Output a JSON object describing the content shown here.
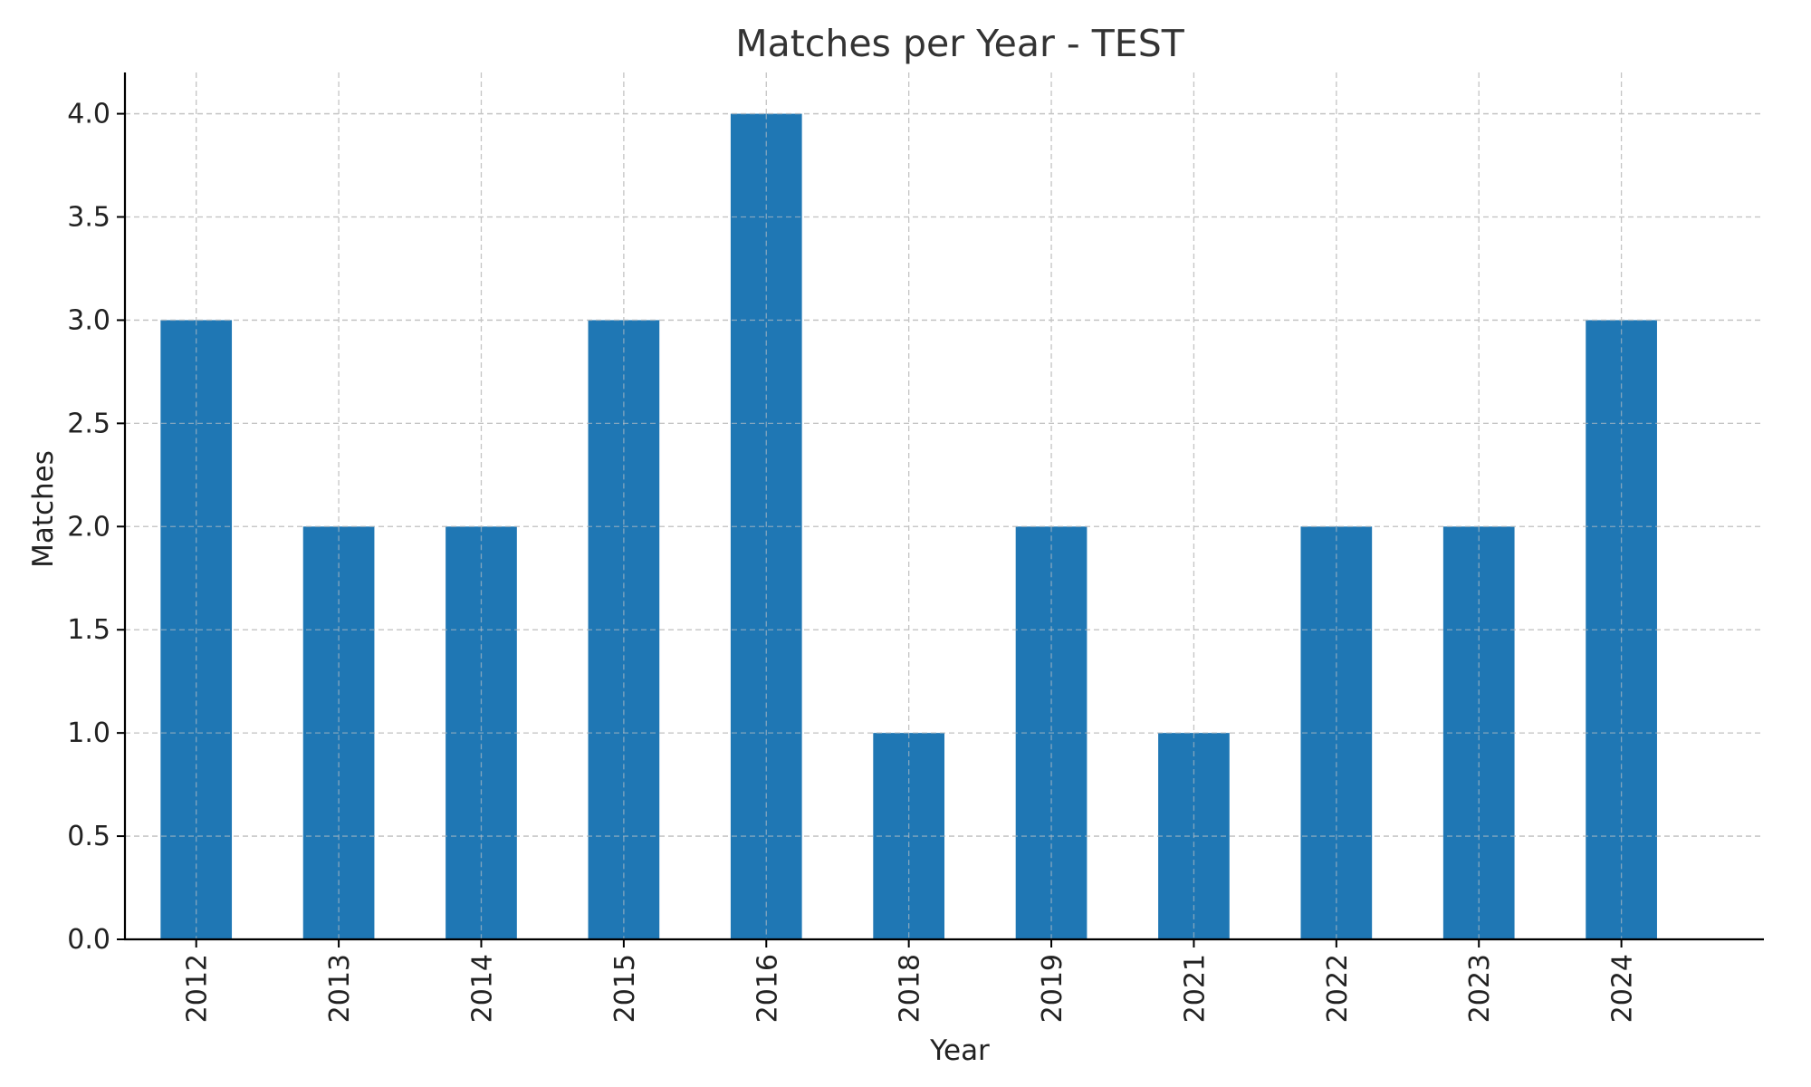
{
  "chart_data": {
    "type": "bar",
    "title": "Matches per Year - TEST",
    "xlabel": "Year",
    "ylabel": "Matches",
    "categories": [
      "2012",
      "2013",
      "2014",
      "2015",
      "2016",
      "2018",
      "2019",
      "2021",
      "2022",
      "2023",
      "2024"
    ],
    "values": [
      3,
      2,
      2,
      3,
      4,
      1,
      2,
      1,
      2,
      2,
      3
    ],
    "ylim": [
      0,
      4.2
    ],
    "yticks": [
      0.0,
      0.5,
      1.0,
      1.5,
      2.0,
      2.5,
      3.0,
      3.5,
      4.0
    ],
    "ytick_labels": [
      "0.0",
      "0.5",
      "1.0",
      "1.5",
      "2.0",
      "2.5",
      "3.0",
      "3.5",
      "4.0"
    ],
    "grid": true,
    "bar_color": "#1f77b4",
    "legend": null
  }
}
